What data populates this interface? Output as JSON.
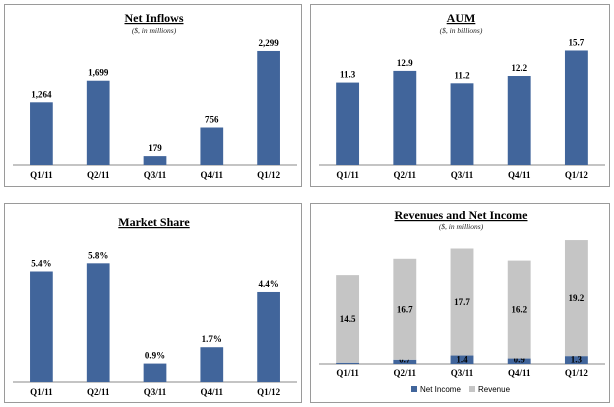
{
  "colors": {
    "bar": "#41659b",
    "revenue": "#c5c5c5",
    "net_income": "#41659b"
  },
  "chart_data": [
    {
      "type": "bar",
      "title": "Net Inflows",
      "subtitle": "($, in millions)",
      "categories": [
        "Q1/11",
        "Q2/11",
        "Q3/11",
        "Q4/11",
        "Q1/12"
      ],
      "values": [
        1264,
        1699,
        179,
        756,
        2299
      ],
      "labels": [
        "1,264",
        "1,699",
        "179",
        "756",
        "2,299"
      ],
      "ylim": [
        0,
        2500
      ],
      "grid": false
    },
    {
      "type": "bar",
      "title": "AUM",
      "subtitle": "($, in billions)",
      "categories": [
        "Q1/11",
        "Q2/11",
        "Q3/11",
        "Q4/11",
        "Q1/12"
      ],
      "values": [
        11.3,
        12.9,
        11.2,
        12.2,
        15.7
      ],
      "labels": [
        "11.3",
        "12.9",
        "11.2",
        "12.2",
        "15.7"
      ],
      "ylim": [
        0,
        17
      ],
      "grid": false
    },
    {
      "type": "bar",
      "title": "Market Share",
      "subtitle": "",
      "categories": [
        "Q1/11",
        "Q2/11",
        "Q3/11",
        "Q4/11",
        "Q1/12"
      ],
      "values": [
        5.4,
        5.8,
        0.9,
        1.7,
        4.4
      ],
      "labels": [
        "5.4%",
        "5.8%",
        "0.9%",
        "1.7%",
        "4.4%"
      ],
      "ylim": [
        0,
        6.5
      ],
      "grid": false
    },
    {
      "type": "bar",
      "stacked": true,
      "title": "Revenues and Net Income",
      "subtitle": "($, in millions)",
      "categories": [
        "Q1/11",
        "Q2/11",
        "Q3/11",
        "Q4/11",
        "Q1/12"
      ],
      "series": [
        {
          "name": "Net Income",
          "values": [
            0.2,
            0.7,
            1.4,
            0.9,
            1.3
          ],
          "labels": [
            "0.2",
            "0.7",
            "1.4",
            "0.9",
            "1.3"
          ]
        },
        {
          "name": "Revenue",
          "values": [
            14.5,
            16.7,
            17.7,
            16.2,
            19.2
          ],
          "labels": [
            "14.5",
            "16.7",
            "17.7",
            "16.2",
            "19.2"
          ]
        }
      ],
      "ylim": [
        0,
        21.5
      ],
      "legend": "bottom",
      "grid": false
    }
  ]
}
